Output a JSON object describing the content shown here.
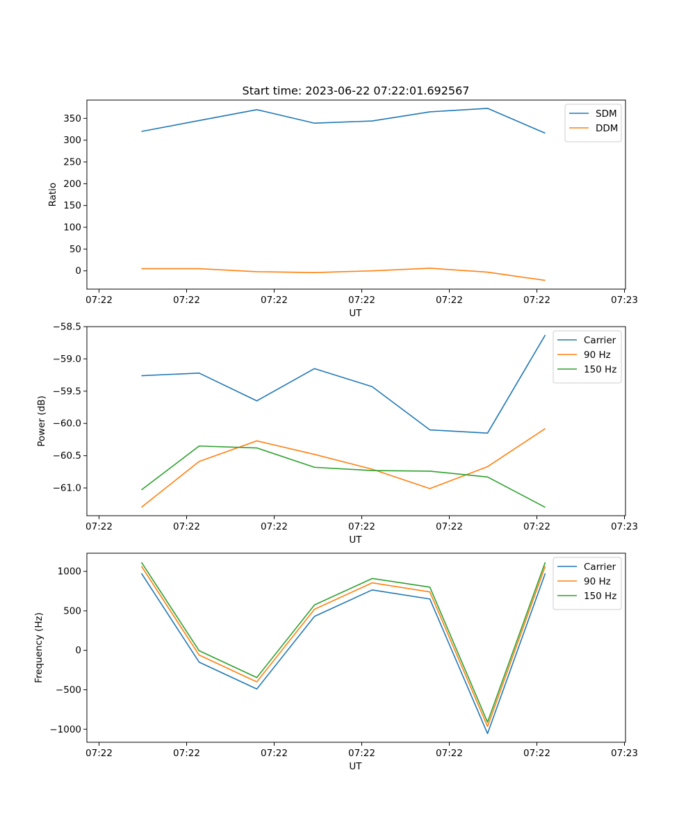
{
  "title": "Start time: 2023-06-22 07:22:01.692567",
  "chart_data": [
    {
      "type": "line",
      "xlabel": "UT",
      "ylabel": "Ratio",
      "x_tick_labels": [
        "07:22",
        "07:22",
        "07:22",
        "07:22",
        "07:22",
        "07:22",
        "07:22",
        "07:23"
      ],
      "y_ticks": [
        0,
        50,
        100,
        150,
        200,
        250,
        300,
        350
      ],
      "y_tick_labels": [
        "0",
        "50",
        "100",
        "150",
        "200",
        "250",
        "300",
        "350"
      ],
      "ylim": [
        -42,
        392
      ],
      "legend_position": "top-right",
      "grid": false,
      "series": [
        {
          "name": "SDM",
          "color": "#1f77b4",
          "values": [
            320,
            345,
            370,
            339,
            344,
            365,
            373,
            316
          ]
        },
        {
          "name": "DDM",
          "color": "#ff7f0e",
          "values": [
            5,
            5,
            -2,
            -4,
            0,
            6,
            -3,
            -22
          ]
        }
      ]
    },
    {
      "type": "line",
      "xlabel": "UT",
      "ylabel": "Power (dB)",
      "x_tick_labels": [
        "07:22",
        "07:22",
        "07:22",
        "07:22",
        "07:22",
        "07:22",
        "07:22",
        "07:23"
      ],
      "y_ticks": [
        -61.0,
        -60.5,
        -60.0,
        -59.5,
        -59.0,
        -58.5
      ],
      "y_tick_labels": [
        "−61.0",
        "−60.5",
        "−60.0",
        "−59.5",
        "−59.0",
        "−58.5"
      ],
      "ylim": [
        -61.43,
        -58.5
      ],
      "legend_position": "top-right",
      "grid": false,
      "series": [
        {
          "name": "Carrier",
          "color": "#1f77b4",
          "values": [
            -59.26,
            -59.22,
            -59.65,
            -59.15,
            -59.43,
            -60.1,
            -60.15,
            -58.63
          ]
        },
        {
          "name": "90 Hz",
          "color": "#ff7f0e",
          "values": [
            -61.3,
            -60.59,
            -60.27,
            -60.48,
            -60.71,
            -61.01,
            -60.67,
            -60.08
          ]
        },
        {
          "name": "150 Hz",
          "color": "#2ca02c",
          "values": [
            -61.03,
            -60.35,
            -60.38,
            -60.68,
            -60.73,
            -60.74,
            -60.83,
            -61.3
          ]
        }
      ]
    },
    {
      "type": "line",
      "xlabel": "UT",
      "ylabel": "Frequency (Hz)",
      "x_tick_labels": [
        "07:22",
        "07:22",
        "07:22",
        "07:22",
        "07:22",
        "07:22",
        "07:22",
        "07:23"
      ],
      "y_ticks": [
        -1000,
        -500,
        0,
        500,
        1000
      ],
      "y_tick_labels": [
        "−1000",
        "−500",
        "0",
        "500",
        "1000"
      ],
      "ylim": [
        -1165,
        1230
      ],
      "legend_position": "top-right",
      "grid": false,
      "series": [
        {
          "name": "Carrier",
          "color": "#1f77b4",
          "values": [
            975,
            -150,
            -490,
            430,
            765,
            650,
            -1055,
            975
          ]
        },
        {
          "name": "90 Hz",
          "color": "#ff7f0e",
          "values": [
            1065,
            -60,
            -400,
            520,
            855,
            740,
            -965,
            1065
          ]
        },
        {
          "name": "150 Hz",
          "color": "#2ca02c",
          "values": [
            1115,
            -5,
            -345,
            575,
            910,
            800,
            -910,
            1115
          ]
        }
      ]
    }
  ]
}
